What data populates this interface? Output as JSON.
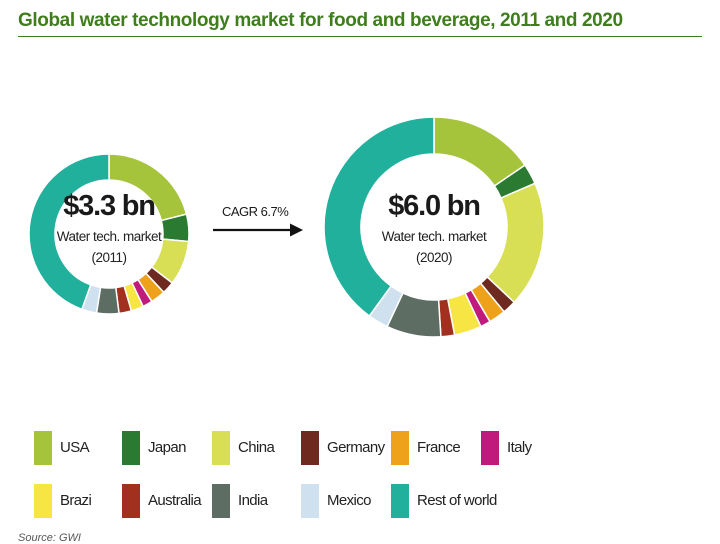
{
  "title": "Global water technology market for food and beverage, 2011 and 2020",
  "source": "Source: GWI",
  "colors": {
    "USA": "#a5c43c",
    "Japan": "#2a7a32",
    "China": "#d9df55",
    "Germany": "#6e2a1e",
    "France": "#eea21b",
    "Italy": "#c01b7c",
    "Brazil": "#f6e542",
    "Australia": "#a1301f",
    "India": "#5d6d64",
    "Mexico": "#cfe0ef",
    "Rest of world": "#20b09c"
  },
  "chart_data": [
    {
      "type": "pie",
      "style": "donut",
      "year": "2011",
      "center_value": "$3.3 bn",
      "center_label": "Water tech. market",
      "center_year": "(2011)",
      "segments": [
        {
          "label": "USA",
          "percent": 21.0
        },
        {
          "label": "Japan",
          "percent": 5.5
        },
        {
          "label": "China",
          "percent": 9.0
        },
        {
          "label": "Germany",
          "percent": 2.5
        },
        {
          "label": "France",
          "percent": 3.0
        },
        {
          "label": "Italy",
          "percent": 2.0
        },
        {
          "label": "Brazil",
          "percent": 2.5
        },
        {
          "label": "Australia",
          "percent": 2.5
        },
        {
          "label": "India",
          "percent": 4.5
        },
        {
          "label": "Mexico",
          "percent": 3.0
        },
        {
          "label": "Rest of world",
          "percent": 44.5
        }
      ]
    },
    {
      "type": "pie",
      "style": "donut",
      "year": "2020",
      "center_value": "$6.0 bn",
      "center_label": "Water tech. market",
      "center_year": "(2020)",
      "segments": [
        {
          "label": "USA",
          "percent": 15.5
        },
        {
          "label": "Japan",
          "percent": 3.0
        },
        {
          "label": "China",
          "percent": 18.5
        },
        {
          "label": "Germany",
          "percent": 2.0
        },
        {
          "label": "France",
          "percent": 2.5
        },
        {
          "label": "Italy",
          "percent": 1.5
        },
        {
          "label": "Brazil",
          "percent": 4.0
        },
        {
          "label": "Australia",
          "percent": 2.0
        },
        {
          "label": "India",
          "percent": 8.0
        },
        {
          "label": "Mexico",
          "percent": 3.0
        },
        {
          "label": "Rest of world",
          "percent": 40.0
        }
      ]
    }
  ],
  "cagr": "CAGR 6.7%",
  "legend": [
    {
      "label": "USA",
      "color_key": "USA"
    },
    {
      "label": "Japan",
      "color_key": "Japan"
    },
    {
      "label": "China",
      "color_key": "China"
    },
    {
      "label": "Germany",
      "color_key": "Germany"
    },
    {
      "label": "France",
      "color_key": "France"
    },
    {
      "label": "Italy",
      "color_key": "Italy"
    },
    {
      "label": "Brazi",
      "color_key": "Brazil"
    },
    {
      "label": "Australia",
      "color_key": "Australia"
    },
    {
      "label": "India",
      "color_key": "India"
    },
    {
      "label": "Mexico",
      "color_key": "Mexico"
    },
    {
      "label": "Rest of world",
      "color_key": "Rest of world"
    }
  ]
}
